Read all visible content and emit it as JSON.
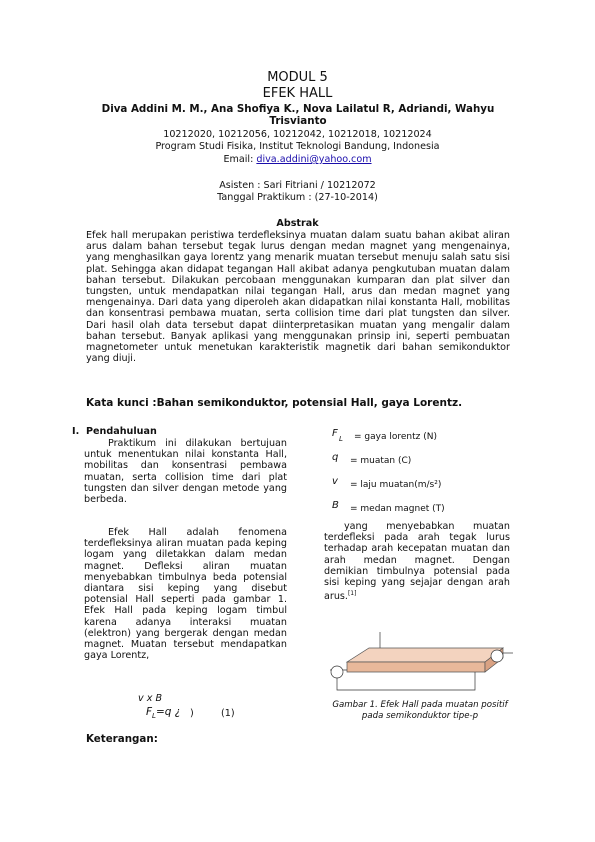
{
  "header": {
    "title": "MODUL 5",
    "subtitle": "EFEK HALL",
    "authors": "Diva Addini M. M., Ana Shofiya K., Nova Lailatul R, Adriandi, Wahyu Trisvianto",
    "ids": "10212020, 10212056, 10212042, 10212018, 10212024",
    "affiliation": "Program Studi Fisika, Institut Teknologi Bandung, Indonesia",
    "email_label": "Email:",
    "email": "diva.addini@yahoo.com",
    "assistant": "Asisten : Sari Fitriani / 10212072",
    "date": "Tanggal Praktikum : (27-10-2014)"
  },
  "abstract": {
    "heading": "Abstrak",
    "text": "Efek hall merupakan peristiwa terdefleksinya muatan dalam suatu bahan akibat aliran arus dalam bahan tersebut tegak lurus dengan medan magnet yang mengenainya, yang menghasilkan gaya lorentz yang menarik muatan tersebut menuju salah satu sisi plat. Sehingga akan didapat tegangan Hall akibat adanya pengkutuban muatan dalam bahan tersebut. Dilakukan percobaan menggunakan kumparan dan plat silver dan tungsten, untuk mendapatkan nilai tegangan Hall, arus dan medan magnet yang mengenainya. Dari data yang diperoleh akan didapatkan nilai konstanta Hall, mobilitas dan konsentrasi pembawa muatan, serta collision time dari plat tungsten dan silver. Dari hasil olah data tersebut dapat diinterpretasikan muatan yang mengalir dalam bahan tersebut. Banyak aplikasi yang menggunakan prinsip ini, seperti pembuatan magnetometer untuk menetukan karakteristik magnetik dari bahan semikonduktor yang diuji.",
    "keywords": "Kata kunci :Bahan semikonduktor, potensial Hall, gaya Lorentz."
  },
  "section": {
    "number": "I.",
    "title": "Pendahuluan",
    "paragraphs": [
      "Praktikum ini dilakukan bertujuan untuk menentukan nilai konstanta Hall, mobilitas dan konsentrasi pembawa muatan, serta collision time dari plat tungsten dan silver dengan metode yang berbeda.",
      "Efek Hall adalah fenomena terdefleksinya aliran muatan pada keping logam yang diletakkan dalam medan magnet. Defleksi aliran muatan menyebabkan timbulnya beda potensial diantara sisi keping yang disebut potensial Hall seperti pada gambar 1. Efek Hall pada keping logam timbul karena adanya interaksi muatan (elektron) yang bergerak dengan medan magnet. Muatan tersebut mendapatkan gaya Lorentz,"
    ],
    "equation": {
      "top": "v x B",
      "lhs": "F",
      "lhs_sub": "L",
      "rhs": "=q ¿",
      "close": ")",
      "number": "(1)"
    },
    "notes_heading": "Keterangan:",
    "definitions": [
      {
        "symbol": "F",
        "sub": "L",
        "text": "= gaya lorentz (N)"
      },
      {
        "symbol": "q",
        "sub": "",
        "text": "= muatan (C)"
      },
      {
        "symbol": "v",
        "sub": "",
        "text": "= laju muatan(m/s²)"
      },
      {
        "symbol": "B",
        "sub": "",
        "text": "= medan magnet (T)"
      }
    ],
    "paragraph3": "yang menyebabkan muatan terdefleksi pada arah tegak lurus terhadap arah kecepatan muatan dan arah medan magnet. Dengan demikian timbulnya potensial pada sisi keping yang sejajar dengan arah arus.",
    "citation": "[1]",
    "figure_caption": "Gambar 1. Efek Hall pada muatan positif pada semikonduktor tipe-p"
  }
}
